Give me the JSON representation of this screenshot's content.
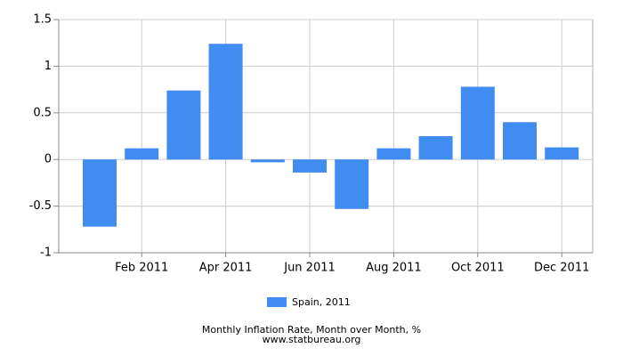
{
  "chart_data": {
    "type": "bar",
    "caption": "Monthly Inflation Rate, Month over Month, %",
    "source": "www.statbureau.org",
    "categories": [
      null,
      "Feb 2011",
      null,
      "Apr 2011",
      null,
      "Jun 2011",
      null,
      "Aug 2011",
      null,
      "Oct 2011",
      null,
      "Dec 2011"
    ],
    "series": [
      {
        "name": "Spain, 2011",
        "color": "#418cf0",
        "values": [
          -0.72,
          0.12,
          0.74,
          1.24,
          -0.03,
          -0.14,
          -0.53,
          0.12,
          0.25,
          0.78,
          0.4,
          0.13
        ]
      }
    ],
    "ylim": [
      -1,
      1.5
    ],
    "yticks": [
      -1,
      -0.5,
      0,
      0.5,
      1,
      1.5
    ],
    "grid": true
  }
}
